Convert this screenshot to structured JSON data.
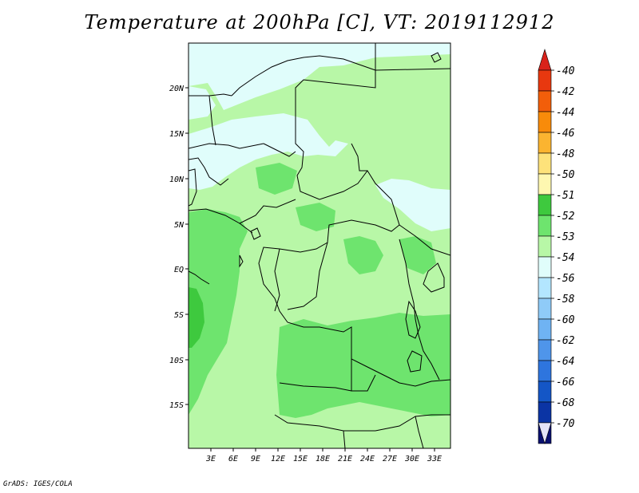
{
  "title": "Temperature at 200hPa [C], VT: 2019112912",
  "credit": "GrADS: IGES/COLA",
  "lat_ticks": [
    "20N",
    "15N",
    "10N",
    "5N",
    "EQ",
    "5S",
    "10S",
    "15S"
  ],
  "lon_ticks": [
    "3E",
    "6E",
    "9E",
    "12E",
    "15E",
    "18E",
    "21E",
    "24E",
    "27E",
    "30E",
    "33E"
  ],
  "colorbar": {
    "labels": [
      "-40",
      "-42",
      "-44",
      "-46",
      "-48",
      "-50",
      "-51",
      "-52",
      "-53",
      "-54",
      "-56",
      "-58",
      "-60",
      "-62",
      "-64",
      "-66",
      "-68",
      "-70"
    ],
    "colors": {
      "top_arrow": "#d9221b",
      "bottom_arrow": "#e4e4f8",
      "bins": [
        "#e8380f",
        "#f25e0a",
        "#f88b0a",
        "#fbb430",
        "#fde27a",
        "#fef7b0",
        "#3ec93e",
        "#6ee46e",
        "#b8f7a7",
        "#e0fdfb",
        "#b3e6ff",
        "#8fcbf8",
        "#6fb3f3",
        "#4f95ea",
        "#2e75de",
        "#1456c6",
        "#0b34a4",
        "#0a1070"
      ]
    }
  },
  "map_colors": {
    "cold": "#e0fdfb",
    "mid": "#b8f7a7",
    "warm": "#6ee46e",
    "warmest": "#3ec93e",
    "border": "#000000"
  }
}
